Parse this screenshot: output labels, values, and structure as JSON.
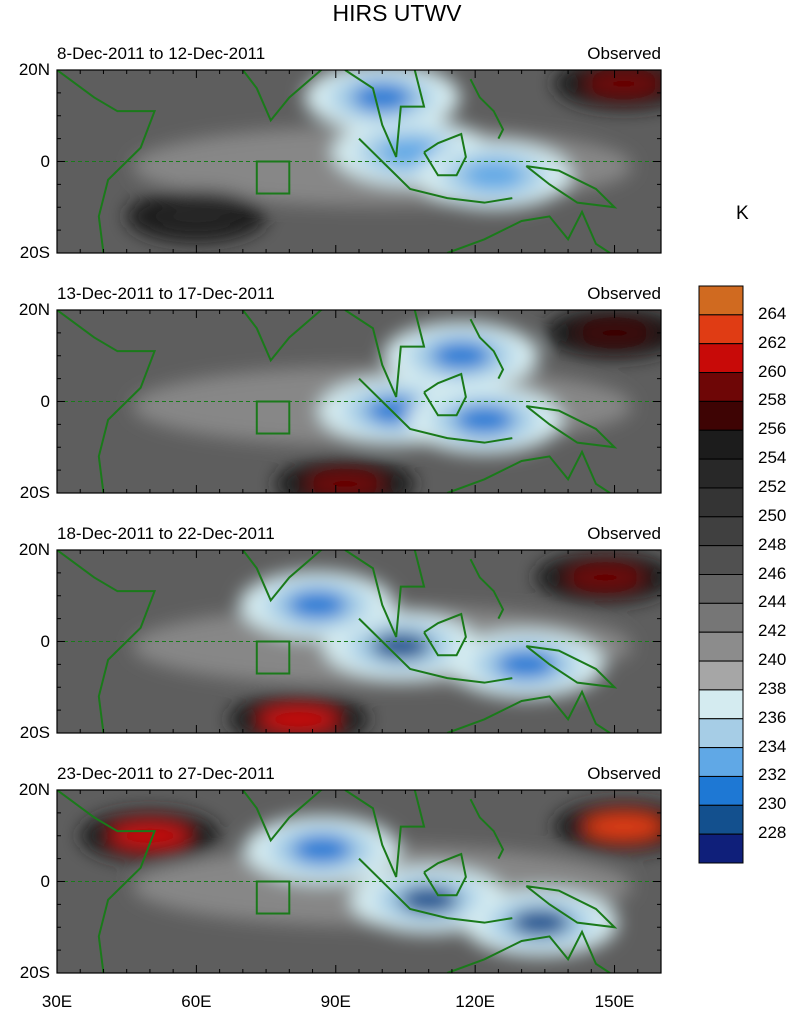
{
  "title": "HIRS UTWV",
  "chart_data": {
    "type": "heatmap",
    "title": "HIRS UTWV",
    "x_ticks": [
      "30E",
      "60E",
      "90E",
      "120E",
      "150E"
    ],
    "y_ticks": [
      "20N",
      "0",
      "20S"
    ],
    "xlim": [
      30,
      160
    ],
    "ylim": [
      -20,
      20
    ],
    "panels": [
      {
        "period": "8-Dec-2011 to 12-Dec-2011",
        "label": "Observed",
        "features": [
          {
            "type": "moist",
            "lon": 106,
            "lat": 2,
            "value": 233
          },
          {
            "type": "moist",
            "lon": 124,
            "lat": -3,
            "value": 233
          },
          {
            "type": "moist",
            "lon": 100,
            "lat": 14,
            "value": 231
          },
          {
            "type": "dry",
            "lon": 152,
            "lat": 17,
            "value": 260
          },
          {
            "type": "dry",
            "lon": 60,
            "lat": -12,
            "value": 254
          }
        ]
      },
      {
        "period": "13-Dec-2011 to 17-Dec-2011",
        "label": "Observed",
        "features": [
          {
            "type": "moist",
            "lon": 103,
            "lat": -2,
            "value": 231
          },
          {
            "type": "moist",
            "lon": 122,
            "lat": -4,
            "value": 232
          },
          {
            "type": "moist",
            "lon": 117,
            "lat": 10,
            "value": 232
          },
          {
            "type": "dry",
            "lon": 150,
            "lat": 15,
            "value": 258
          },
          {
            "type": "dry",
            "lon": 92,
            "lat": -18,
            "value": 259
          }
        ]
      },
      {
        "period": "18-Dec-2011 to 22-Dec-2011",
        "label": "Observed",
        "features": [
          {
            "type": "moist",
            "lon": 104,
            "lat": -1,
            "value": 230
          },
          {
            "type": "moist",
            "lon": 86,
            "lat": 8,
            "value": 232
          },
          {
            "type": "moist",
            "lon": 131,
            "lat": -5,
            "value": 232
          },
          {
            "type": "dry",
            "lon": 148,
            "lat": 14,
            "value": 260
          },
          {
            "type": "dry",
            "lon": 82,
            "lat": -17,
            "value": 261
          }
        ]
      },
      {
        "period": "23-Dec-2011 to 27-Dec-2011",
        "label": "Observed",
        "features": [
          {
            "type": "moist",
            "lon": 87,
            "lat": 7,
            "value": 231
          },
          {
            "type": "moist",
            "lon": 110,
            "lat": -4,
            "value": 230
          },
          {
            "type": "moist",
            "lon": 134,
            "lat": -9,
            "value": 229
          },
          {
            "type": "dry",
            "lon": 50,
            "lat": 10,
            "value": 261
          },
          {
            "type": "dry",
            "lon": 152,
            "lat": 12,
            "value": 263
          }
        ]
      }
    ],
    "colorbar": {
      "unit": "K",
      "levels": [
        264,
        262,
        260,
        258,
        256,
        254,
        252,
        250,
        248,
        246,
        244,
        242,
        240,
        238,
        236,
        234,
        232,
        230,
        228
      ],
      "colors": [
        "#d06a20",
        "#e03c14",
        "#c80a08",
        "#6e0606",
        "#3e0404",
        "#1c1c1c",
        "#282828",
        "#343434",
        "#404040",
        "#505050",
        "#626262",
        "#767676",
        "#8c8c8c",
        "#a6a6a6",
        "#d4ebf0",
        "#a6cde6",
        "#60a8e6",
        "#1e78d4",
        "#13508e",
        "#0f1f7a"
      ]
    }
  }
}
